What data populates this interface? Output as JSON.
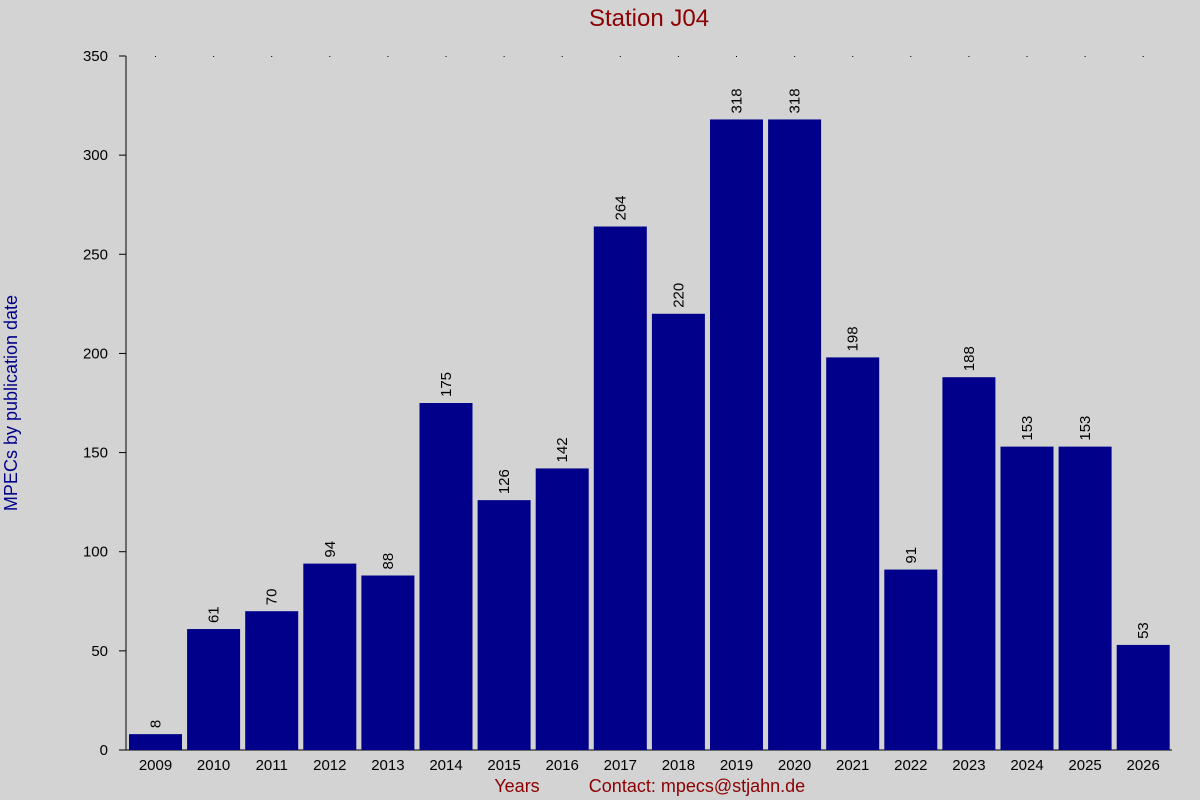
{
  "chart_data": {
    "type": "bar",
    "title": "Station J04",
    "ylabel": "MPECs by publication date",
    "xlabel": "Years",
    "contact": "Contact: mpecs@stjahn.de",
    "categories": [
      "2009",
      "2010",
      "2011",
      "2012",
      "2013",
      "2014",
      "2015",
      "2016",
      "2017",
      "2018",
      "2019",
      "2020",
      "2021",
      "2022",
      "2023",
      "2024",
      "2025",
      "2026"
    ],
    "values": [
      8,
      61,
      70,
      94,
      88,
      175,
      126,
      142,
      264,
      220,
      318,
      318,
      198,
      91,
      188,
      153,
      153,
      53
    ],
    "ylim": [
      0,
      350
    ],
    "yticks": [
      0,
      50,
      100,
      150,
      200,
      250,
      300,
      350
    ],
    "bar_color": "#00008b",
    "grid": false
  }
}
